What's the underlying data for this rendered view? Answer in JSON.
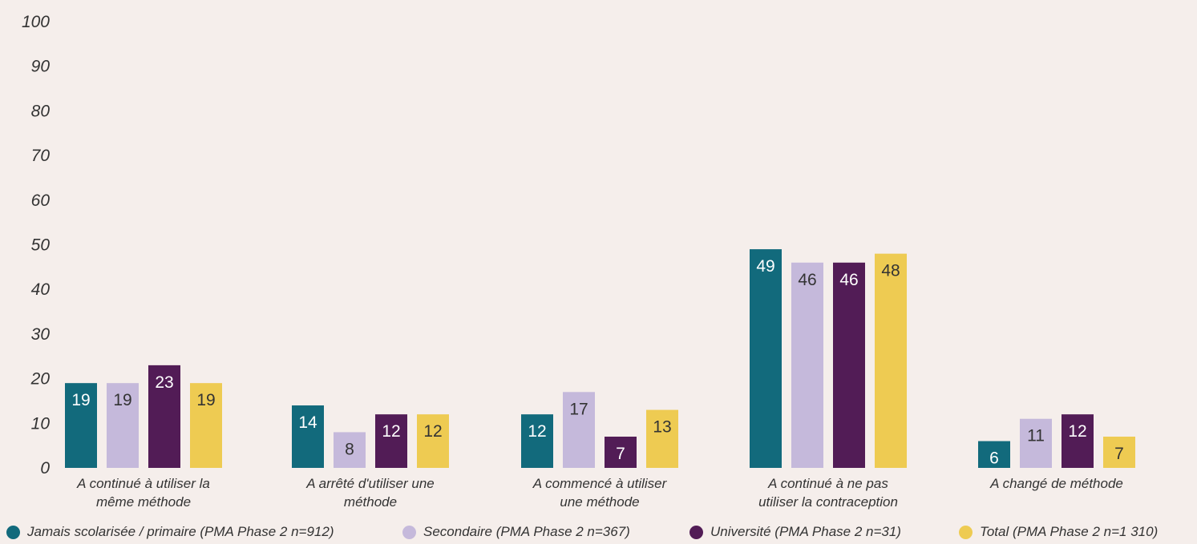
{
  "chart_data": {
    "type": "bar",
    "categories": [
      [
        "A continué à utiliser la",
        "même méthode"
      ],
      [
        "A arrêté d'utiliser une",
        "méthode"
      ],
      [
        "A commencé à utiliser",
        "une méthode"
      ],
      [
        "A continué à ne pas",
        "utiliser la contraception"
      ],
      [
        "A changé de méthode"
      ]
    ],
    "series": [
      {
        "name": "Jamais scolarisée / primaire (PMA Phase 2 n=912)",
        "values": [
          19,
          14,
          12,
          49,
          6
        ],
        "color": "#126a7c",
        "label_color": "#ffffff"
      },
      {
        "name": "Secondaire (PMA Phase 2 n=367)",
        "values": [
          19,
          8,
          17,
          46,
          11
        ],
        "color": "#c5b9db",
        "label_color": "#333333"
      },
      {
        "name": "Université (PMA Phase 2 n=31)",
        "values": [
          23,
          12,
          7,
          46,
          12
        ],
        "color": "#521c56",
        "label_color": "#ffffff"
      },
      {
        "name": "Total (PMA Phase 2 n=1 310)",
        "values": [
          19,
          12,
          13,
          48,
          7
        ],
        "color": "#eecb52",
        "label_color": "#333333"
      }
    ],
    "yticks": [
      "0",
      "10",
      "20",
      "30",
      "40",
      "50",
      "60",
      "70",
      "80",
      "90",
      "100"
    ],
    "ylim": [
      0,
      100
    ],
    "xlabel": "",
    "ylabel": "",
    "legend_position": "bottom",
    "grid": false
  }
}
